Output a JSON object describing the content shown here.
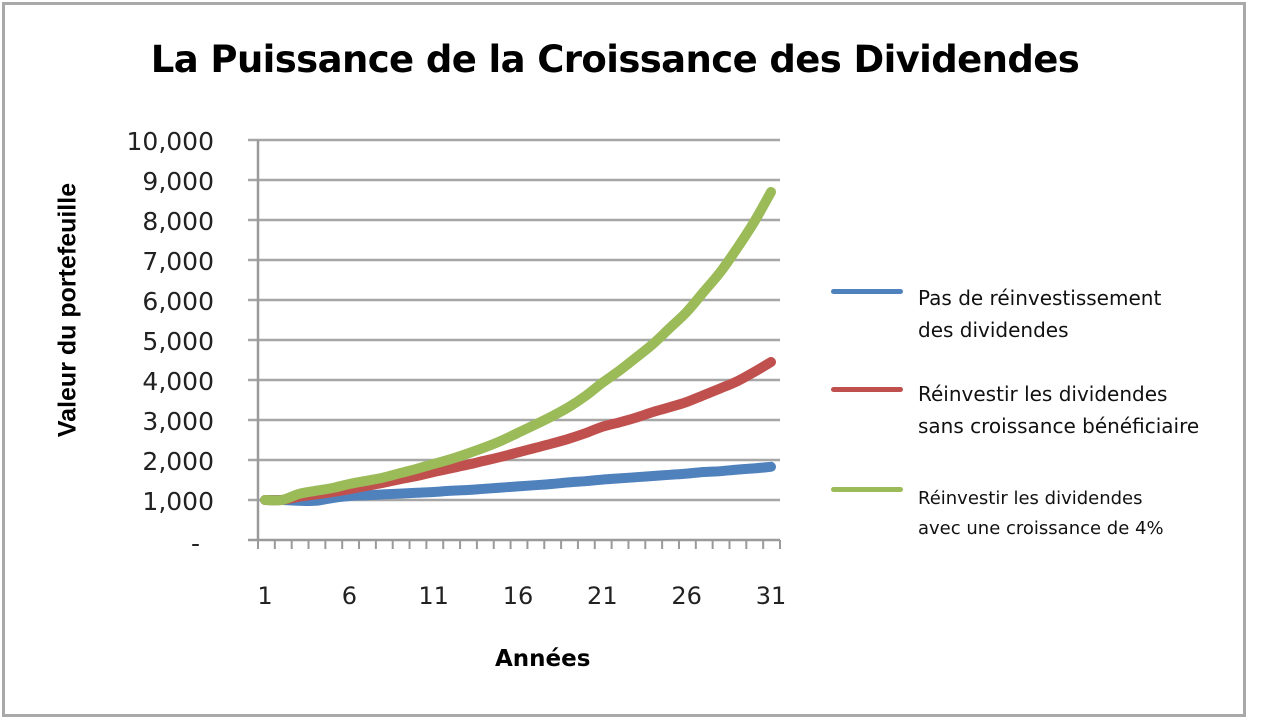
{
  "chart_data": {
    "type": "line",
    "title": "La Puissance de la Croissance des Dividendes",
    "xlabel": "Années",
    "ylabel": "Valeur du portefeuille",
    "ylim": [
      0,
      10000
    ],
    "xlim": [
      1,
      31
    ],
    "grid": true,
    "legend_position": "right",
    "x_tick_labels": [
      "1",
      "6",
      "11",
      "16",
      "21",
      "26",
      "31"
    ],
    "y_tick_labels": [
      "-",
      "1,000",
      "2,000",
      "3,000",
      "4,000",
      "5,000",
      "6,000",
      "7,000",
      "8,000",
      "9,000",
      "10,000"
    ],
    "x": [
      1,
      2,
      3,
      4,
      5,
      6,
      7,
      8,
      9,
      10,
      11,
      12,
      13,
      14,
      15,
      16,
      17,
      18,
      19,
      20,
      21,
      22,
      23,
      24,
      25,
      26,
      27,
      28,
      29,
      30,
      31
    ],
    "series": [
      {
        "name": "Pas de réinvestissement des dividendes",
        "color": "#4F81BD",
        "values": [
          1000,
          1000,
          980,
          980,
          1050,
          1100,
          1120,
          1140,
          1160,
          1180,
          1200,
          1230,
          1250,
          1280,
          1310,
          1340,
          1370,
          1400,
          1440,
          1470,
          1510,
          1540,
          1570,
          1600,
          1630,
          1660,
          1700,
          1720,
          1760,
          1790,
          1830
        ]
      },
      {
        "name": "Réinvestir les dividendes sans croissance bénéficiaire",
        "color": "#C0504D",
        "values": [
          1000,
          1000,
          1080,
          1140,
          1200,
          1270,
          1350,
          1430,
          1520,
          1600,
          1700,
          1790,
          1880,
          1980,
          2080,
          2190,
          2300,
          2410,
          2530,
          2670,
          2830,
          2940,
          3060,
          3200,
          3320,
          3450,
          3620,
          3790,
          3970,
          4200,
          4450
        ]
      },
      {
        "name": "Réinvestir les dividendes avec une croissance de 4%",
        "color": "#9BBB59",
        "values": [
          1000,
          1000,
          1150,
          1230,
          1300,
          1400,
          1480,
          1560,
          1670,
          1780,
          1900,
          2020,
          2160,
          2310,
          2480,
          2680,
          2880,
          3090,
          3320,
          3600,
          3930,
          4230,
          4560,
          4900,
          5300,
          5700,
          6200,
          6700,
          7300,
          7950,
          8700
        ]
      }
    ]
  },
  "title": "La Puissance de la Croissance des Dividendes",
  "axes": {
    "x_title": "Années",
    "y_title": "Valeur du portefeuille"
  },
  "legend": {
    "items": [
      {
        "line1": "Pas de réinvestissement",
        "line2": "des dividendes",
        "color": "#4F81BD"
      },
      {
        "line1": "Réinvestir les dividendes",
        "line2": "sans croissance bénéficiaire",
        "color": "#C0504D"
      },
      {
        "line1": "Réinvestir les dividendes",
        "line2": "avec une croissance de 4%",
        "color": "#9BBB59"
      }
    ]
  },
  "colors": {
    "grid": "#A6A6A6",
    "axis": "#9A9A9A",
    "frame": "#A9A9A9"
  }
}
